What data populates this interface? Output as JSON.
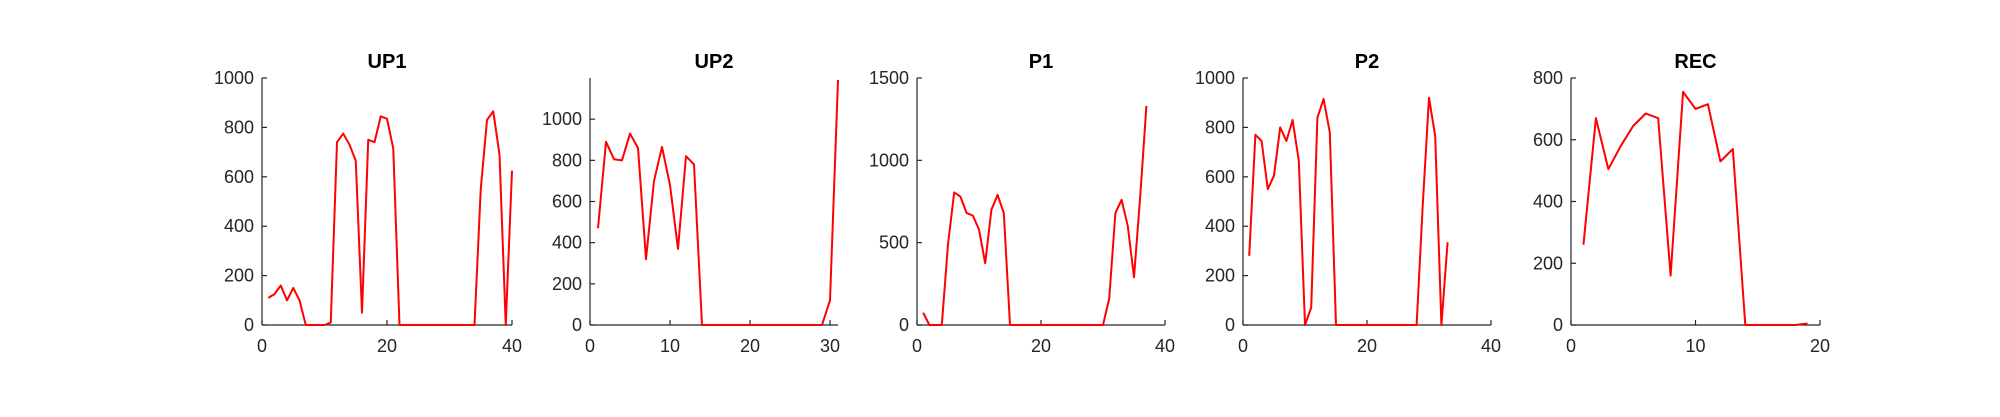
{
  "chart_data": [
    {
      "type": "line",
      "title": "UP1",
      "xlim": [
        0,
        40
      ],
      "ylim": [
        0,
        1000
      ],
      "xticks": [
        0,
        20,
        40
      ],
      "yticks": [
        0,
        200,
        400,
        600,
        800,
        1000
      ],
      "color": "#ff0000",
      "grid": false,
      "x": [
        1,
        2,
        3,
        4,
        5,
        6,
        7,
        8,
        9,
        10,
        11,
        12,
        13,
        14,
        15,
        16,
        17,
        18,
        19,
        20,
        21,
        22,
        23,
        24,
        25,
        26,
        27,
        28,
        29,
        30,
        31,
        32,
        33,
        34,
        35,
        36,
        37,
        38,
        39,
        40
      ],
      "y": [
        110,
        125,
        160,
        100,
        150,
        100,
        0,
        0,
        0,
        0,
        10,
        740,
        775,
        730,
        665,
        50,
        750,
        740,
        845,
        835,
        715,
        0,
        0,
        0,
        0,
        0,
        0,
        0,
        0,
        0,
        0,
        0,
        0,
        0,
        550,
        830,
        865,
        690,
        0,
        625
      ]
    },
    {
      "type": "line",
      "title": "UP2",
      "xlim": [
        0,
        31
      ],
      "ylim": [
        0,
        1200
      ],
      "xticks": [
        0,
        10,
        20,
        30
      ],
      "yticks": [
        0,
        200,
        400,
        600,
        800,
        1000
      ],
      "color": "#ff0000",
      "grid": false,
      "x": [
        1,
        2,
        3,
        4,
        5,
        6,
        7,
        8,
        9,
        10,
        11,
        12,
        13,
        14,
        15,
        16,
        17,
        18,
        19,
        20,
        21,
        22,
        23,
        24,
        25,
        26,
        27,
        28,
        29,
        30,
        31
      ],
      "y": [
        470,
        890,
        805,
        800,
        930,
        860,
        320,
        700,
        865,
        680,
        370,
        820,
        780,
        0,
        0,
        0,
        0,
        0,
        0,
        0,
        0,
        0,
        0,
        0,
        0,
        0,
        0,
        0,
        0,
        120,
        1190
      ]
    },
    {
      "type": "line",
      "title": "P1",
      "xlim": [
        0,
        40
      ],
      "ylim": [
        0,
        1500
      ],
      "xticks": [
        0,
        20,
        40
      ],
      "yticks": [
        0,
        500,
        1000,
        1500
      ],
      "color": "#ff0000",
      "grid": false,
      "x": [
        1,
        2,
        3,
        4,
        5,
        6,
        7,
        8,
        9,
        10,
        11,
        12,
        13,
        14,
        15,
        16,
        17,
        18,
        19,
        20,
        21,
        22,
        23,
        24,
        25,
        26,
        27,
        28,
        29,
        30,
        31,
        32,
        33,
        34,
        35,
        36,
        37
      ],
      "y": [
        75,
        0,
        0,
        0,
        490,
        805,
        780,
        680,
        665,
        580,
        375,
        700,
        790,
        680,
        0,
        0,
        0,
        0,
        0,
        0,
        0,
        0,
        0,
        0,
        0,
        0,
        0,
        0,
        0,
        0,
        160,
        680,
        760,
        600,
        290,
        780,
        1330
      ]
    },
    {
      "type": "line",
      "title": "P2",
      "xlim": [
        0,
        40
      ],
      "ylim": [
        0,
        1000
      ],
      "xticks": [
        0,
        20,
        40
      ],
      "yticks": [
        0,
        200,
        400,
        600,
        800,
        1000
      ],
      "color": "#ff0000",
      "grid": false,
      "x": [
        1,
        2,
        3,
        4,
        5,
        6,
        7,
        8,
        9,
        10,
        11,
        12,
        13,
        14,
        15,
        16,
        17,
        18,
        19,
        20,
        21,
        22,
        23,
        24,
        25,
        26,
        27,
        28,
        29,
        30,
        31,
        32,
        33
      ],
      "y": [
        280,
        770,
        745,
        550,
        605,
        800,
        745,
        830,
        665,
        0,
        70,
        840,
        915,
        780,
        0,
        0,
        0,
        0,
        0,
        0,
        0,
        0,
        0,
        0,
        0,
        0,
        0,
        0,
        490,
        920,
        765,
        0,
        335
      ]
    },
    {
      "type": "line",
      "title": "REC",
      "xlim": [
        0,
        20
      ],
      "ylim": [
        0,
        800
      ],
      "xticks": [
        0,
        10,
        20
      ],
      "yticks": [
        0,
        200,
        400,
        600,
        800
      ],
      "color": "#ff0000",
      "grid": false,
      "x": [
        1,
        2,
        3,
        4,
        5,
        6,
        7,
        8,
        9,
        10,
        11,
        12,
        13,
        14,
        15,
        16,
        17,
        18,
        19
      ],
      "y": [
        260,
        670,
        505,
        580,
        645,
        685,
        670,
        160,
        755,
        700,
        715,
        530,
        570,
        0,
        0,
        0,
        0,
        0,
        5
      ]
    }
  ]
}
